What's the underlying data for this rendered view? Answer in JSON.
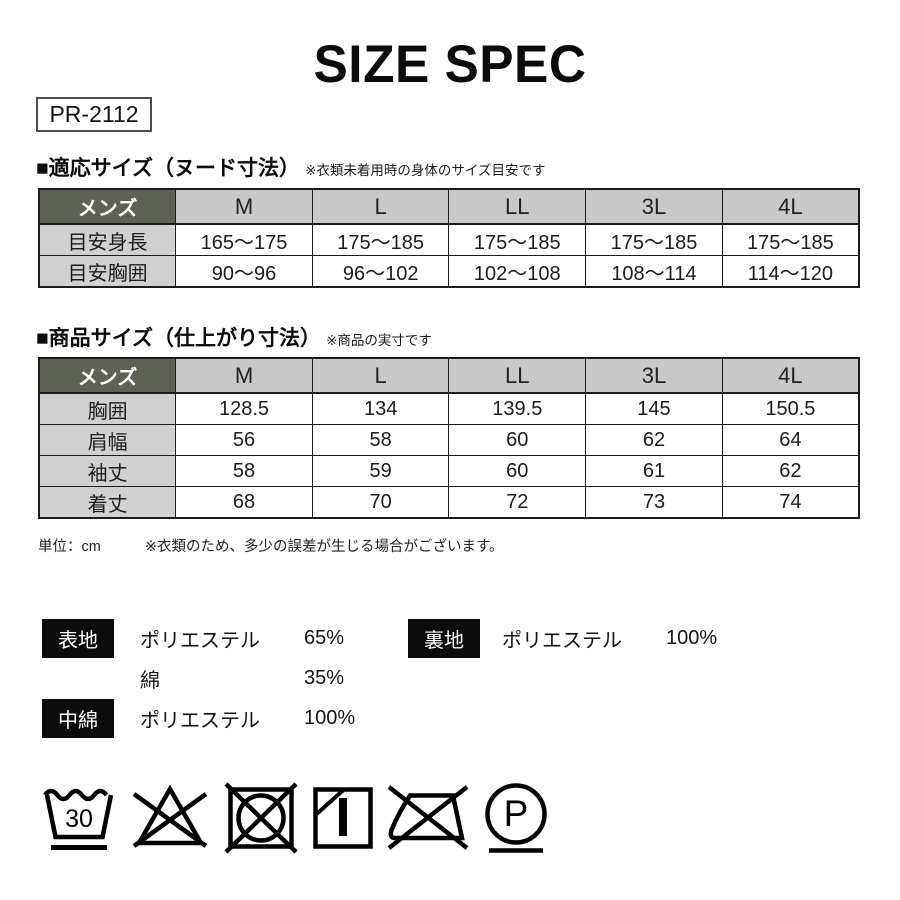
{
  "title": "SIZE SPEC",
  "product_code": "PR-2112",
  "section_nude": {
    "heading": "■適応サイズ（ヌード寸法）",
    "note": "※衣類未着用時の身体のサイズ目安です",
    "table": {
      "corner": "メンズ",
      "columns": [
        "M",
        "L",
        "LL",
        "3L",
        "4L"
      ],
      "rows": [
        {
          "label": "目安身長",
          "values": [
            "165〜175",
            "175〜185",
            "175〜185",
            "175〜185",
            "175〜185"
          ]
        },
        {
          "label": "目安胸囲",
          "values": [
            "90〜96",
            "96〜102",
            "102〜108",
            "108〜114",
            "114〜120"
          ]
        }
      ]
    }
  },
  "section_product": {
    "heading": "■商品サイズ（仕上がり寸法）",
    "note": "※商品の実寸です",
    "table": {
      "corner": "メンズ",
      "columns": [
        "M",
        "L",
        "LL",
        "3L",
        "4L"
      ],
      "rows": [
        {
          "label": "胸囲",
          "values": [
            "128.5",
            "134",
            "139.5",
            "145",
            "150.5"
          ]
        },
        {
          "label": "肩幅",
          "values": [
            "56",
            "58",
            "60",
            "62",
            "64"
          ]
        },
        {
          "label": "袖丈",
          "values": [
            "58",
            "59",
            "60",
            "61",
            "62"
          ]
        },
        {
          "label": "着丈",
          "values": [
            "68",
            "70",
            "72",
            "73",
            "74"
          ]
        }
      ]
    }
  },
  "footnote": {
    "unit": "単位：cm",
    "note": "※衣類のため、多少の誤差が生じる場合がございます。"
  },
  "materials": [
    {
      "badge": "表地",
      "items": [
        {
          "name": "ポリエステル",
          "percent": "65%"
        },
        {
          "name": "綿",
          "percent": "35%"
        }
      ]
    },
    {
      "badge": "裏地",
      "items": [
        {
          "name": "ポリエステル",
          "percent": "100%"
        }
      ]
    },
    {
      "badge": "中綿",
      "items": [
        {
          "name": "ポリエステル",
          "percent": "100%"
        }
      ]
    }
  ],
  "care": {
    "wash_temperature": "30",
    "dry_clean_letter": "P",
    "symbols": [
      "wash-30-mild",
      "do-not-bleach",
      "do-not-tumble-dry",
      "line-dry-in-shade",
      "do-not-iron",
      "professional-dry-clean-p-mild"
    ]
  },
  "colors": {
    "corner_header_bg": "#5d6156",
    "header_bg": "#c9c8c9",
    "row_label_bg": "#d2d1d2",
    "table_border": "#1b1b1b",
    "badge_bg": "#0c0c0c",
    "text": "#111111"
  }
}
